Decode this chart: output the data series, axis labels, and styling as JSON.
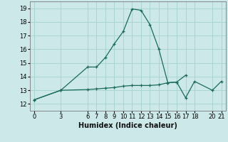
{
  "title": "",
  "xlabel": "Humidex (Indice chaleur)",
  "background_color": "#cce8e8",
  "grid_color": "#aad4d4",
  "line_color": "#1a6b5a",
  "x_ticks": [
    0,
    3,
    6,
    7,
    8,
    9,
    10,
    11,
    12,
    13,
    14,
    15,
    16,
    17,
    18,
    20,
    21
  ],
  "ylim": [
    11.5,
    19.5
  ],
  "xlim": [
    -0.5,
    21.5
  ],
  "yticks": [
    12,
    13,
    14,
    15,
    16,
    17,
    18,
    19
  ],
  "line1_x": [
    0,
    3,
    6,
    7,
    8,
    9,
    10,
    11,
    12,
    13,
    14,
    15,
    16,
    17
  ],
  "line1_y": [
    12.3,
    13.0,
    14.7,
    14.7,
    15.4,
    16.4,
    17.3,
    18.95,
    18.85,
    17.8,
    16.0,
    13.55,
    13.6,
    14.1
  ],
  "line2_x": [
    0,
    3,
    6,
    7,
    8,
    9,
    10,
    11,
    12,
    13,
    14,
    15,
    16,
    17,
    18,
    20,
    21
  ],
  "line2_y": [
    12.3,
    13.0,
    13.05,
    13.1,
    13.15,
    13.2,
    13.3,
    13.35,
    13.35,
    13.35,
    13.4,
    13.55,
    13.6,
    12.45,
    13.65,
    13.0,
    13.65
  ]
}
